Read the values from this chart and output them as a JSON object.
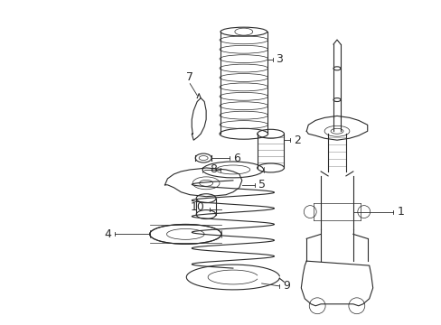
{
  "bg_color": "#ffffff",
  "line_color": "#2a2a2a",
  "label_color": "#000000",
  "figsize": [
    4.89,
    3.6
  ],
  "dpi": 100
}
